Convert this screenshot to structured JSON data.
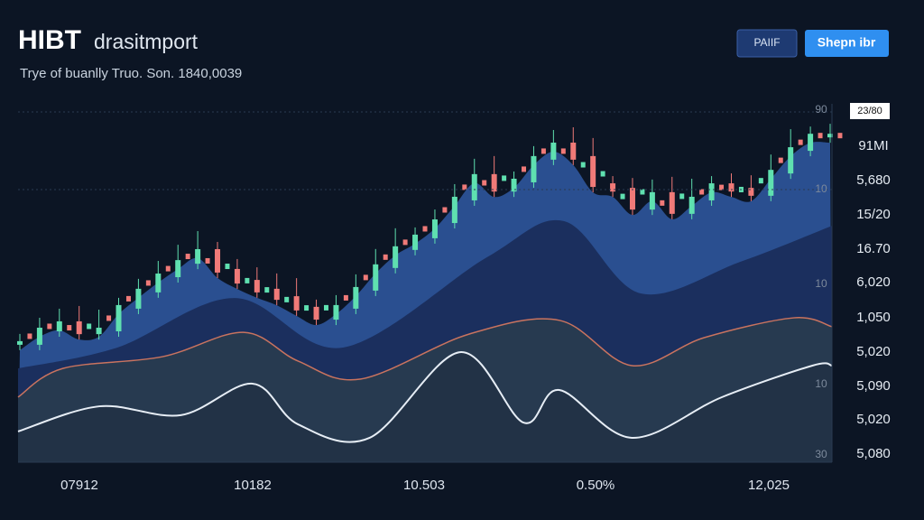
{
  "header": {
    "title": "HIBT",
    "title_rest": "drasitmport",
    "subtitle": "Trye of buanlly Truo. Son.  1840,0039"
  },
  "buttons": [
    "PAIIF",
    "Shepn ibr"
  ],
  "chart": {
    "type": "candlestick",
    "price_tag": "23/80",
    "right_labels": [
      "91MI",
      "5,680",
      "15/20",
      "16.70",
      "6,020",
      "1,050",
      "5,020",
      "5,090",
      "5,020",
      "5,080"
    ],
    "inner_labels": [
      "90",
      "10",
      "10",
      "10",
      "30"
    ],
    "x_labels": [
      "07912",
      "10182",
      "10.503",
      "0.50%",
      "12,025"
    ],
    "ylim": [
      0,
      100
    ],
    "xlim": [
      0,
      100
    ],
    "closes": [
      33.7,
      37.5,
      39.3,
      36.7,
      37.5,
      43.9,
      48.5,
      52.8,
      56.6,
      59.7,
      54.1,
      51,
      48.5,
      46.4,
      43.4,
      40.8,
      43.9,
      49,
      55.4,
      60.5,
      63.8,
      68.1,
      74.5,
      80.9,
      77,
      79.6,
      86,
      89.8,
      86,
      78.3,
      77,
      71.9,
      75.8,
      70.7,
      74.5,
      78.3,
      77,
      75.8,
      82.1,
      88.5,
      92.3,
      92.3
    ],
    "bands": [
      {
        "color": "#1b2f5e",
        "x": [
          0,
          12.2,
          26.6,
          39.9,
          57.6,
          67.1,
          76.5,
          88.7,
          100
        ],
        "values": [
          26.5,
          32.4,
          46.4,
          32.4,
          57.9,
          68.1,
          47.7,
          56.6,
          66.8
        ]
      },
      {
        "color": "#c9735f",
        "fill": "#273a50",
        "x": [
          0,
          5.5,
          17.7,
          27.7,
          34.4,
          42.1,
          55.4,
          66.5,
          75.4,
          84.3,
          95.3,
          100
        ],
        "values": [
          18.4,
          26.5,
          29.8,
          36.7,
          28.6,
          23.5,
          36.2,
          40.1,
          27.3,
          35.2,
          40.8,
          38.3
        ]
      },
      {
        "color": "#e6edf5",
        "fill": "#223246",
        "x": [
          0,
          10,
          20,
          28.8,
          34.4,
          43.2,
          54.3,
          62.1,
          66.5,
          75.4,
          86.5,
          97.6,
          100
        ],
        "values": [
          8.7,
          15.8,
          13.3,
          22.2,
          10.7,
          6.9,
          31.1,
          11.2,
          20.4,
          6.9,
          18.4,
          27.3,
          27.3
        ]
      }
    ]
  }
}
